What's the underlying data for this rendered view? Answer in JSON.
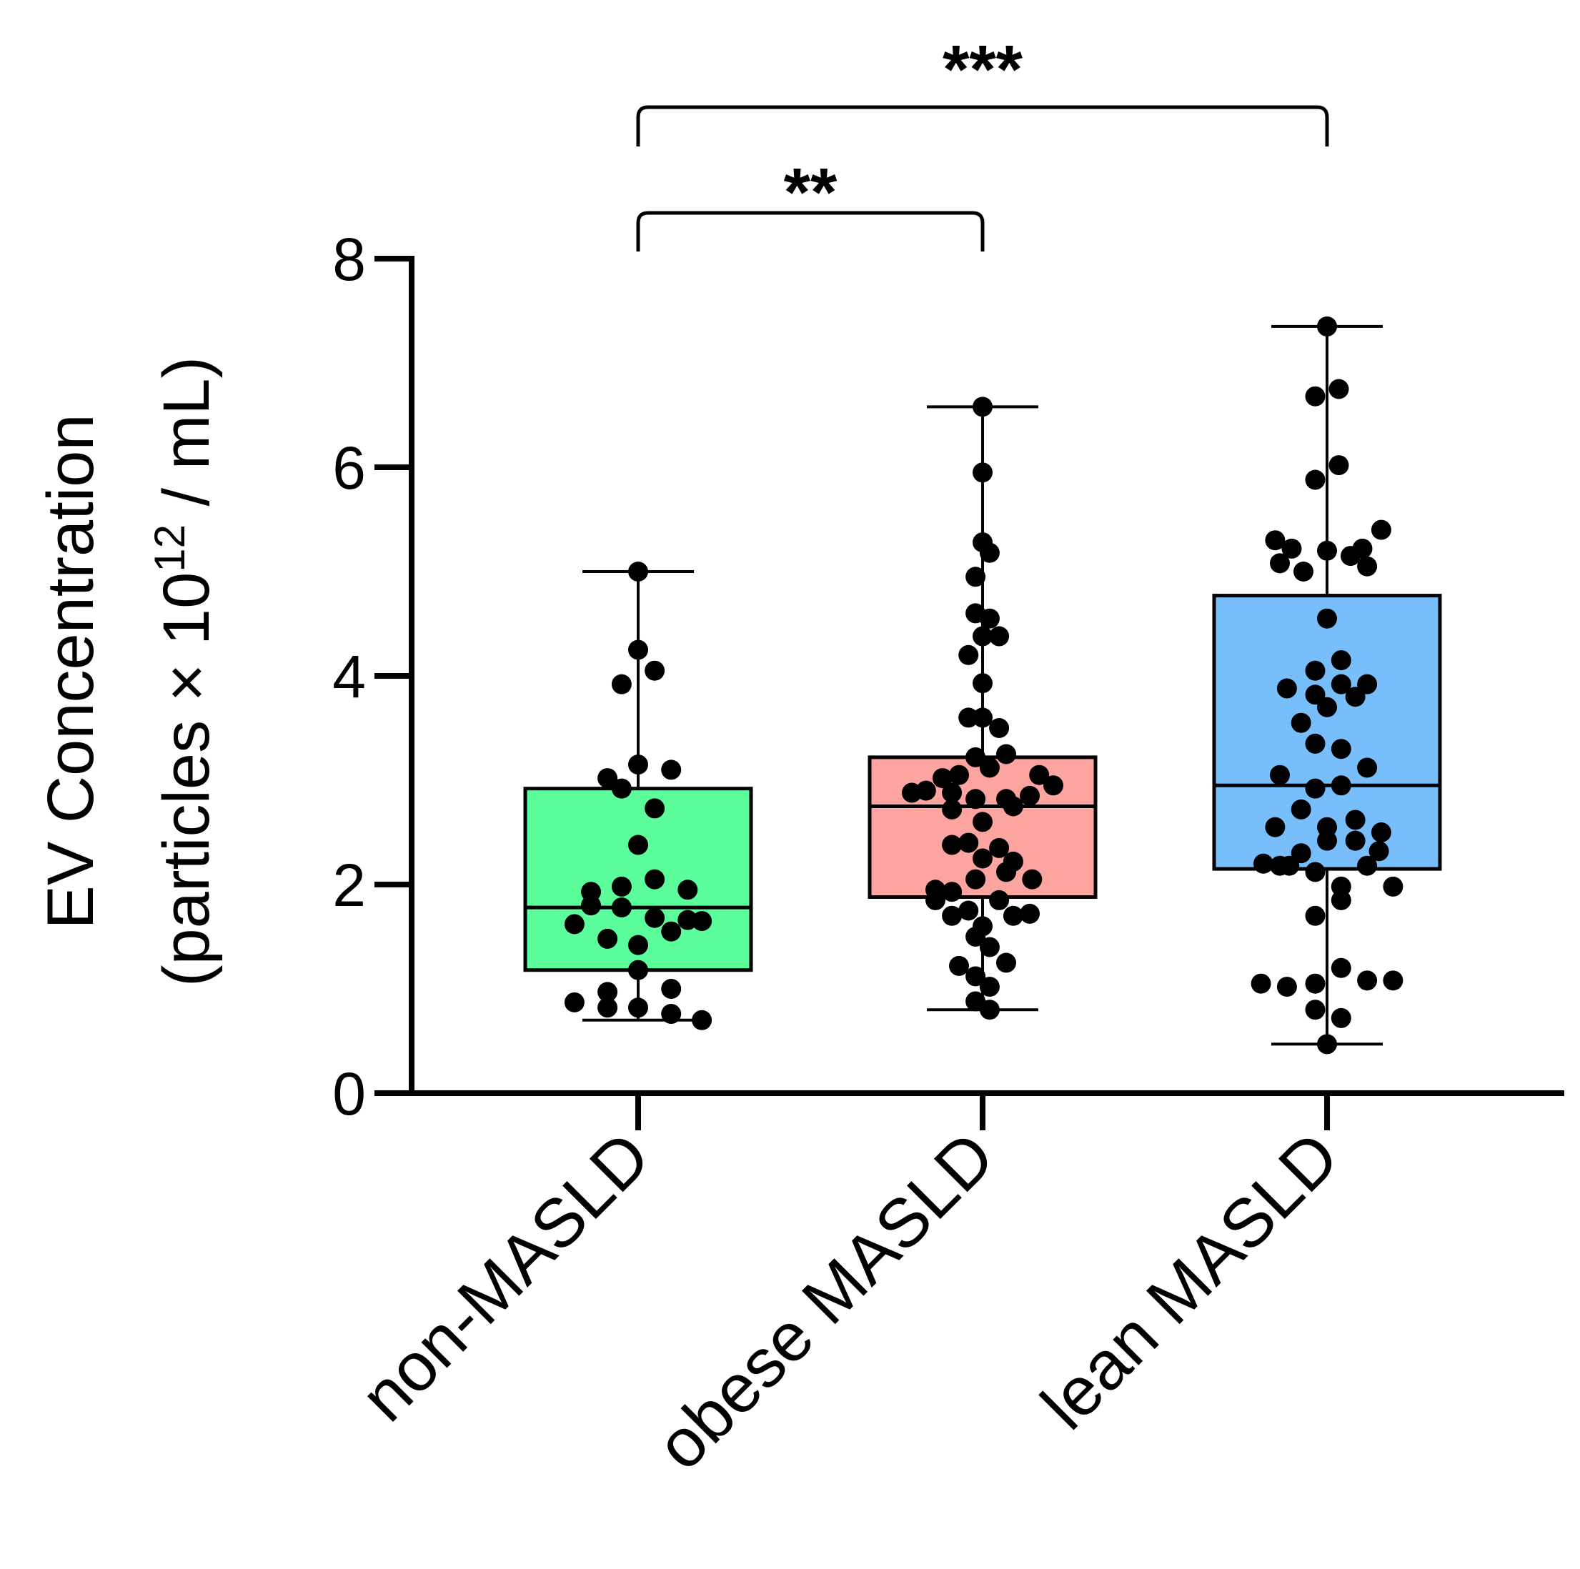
{
  "chart_data": {
    "type": "box",
    "title": "",
    "ylabel_line1": "EV Concentration",
    "ylabel_line2_prefix": "(particles × 10",
    "ylabel_line2_exp": "12",
    "ylabel_line2_suffix": " / mL)",
    "ylim": [
      0,
      8
    ],
    "yticks": [
      0,
      2,
      4,
      6,
      8
    ],
    "categories": [
      "non-MASLD",
      "obese MASLD",
      "lean MASLD"
    ],
    "box_colors": [
      "#5cfe9c",
      "#fca4a0",
      "#78befa"
    ],
    "boxes": [
      {
        "name": "non-MASLD",
        "min": 0.7,
        "q1": 1.18,
        "median": 1.78,
        "q3": 2.92,
        "max": 5.0
      },
      {
        "name": "obese MASLD",
        "min": 0.8,
        "q1": 1.88,
        "median": 2.75,
        "q3": 3.22,
        "max": 6.58
      },
      {
        "name": "lean MASLD",
        "min": 0.47,
        "q1": 2.15,
        "median": 2.95,
        "q3": 4.77,
        "max": 7.35
      }
    ],
    "points": [
      [
        {
          "dx": 0.0,
          "y": 5.0
        },
        {
          "dx": 0.0,
          "y": 4.25
        },
        {
          "dx": 0.07,
          "y": 4.05
        },
        {
          "dx": -0.07,
          "y": 3.92
        },
        {
          "dx": 0.0,
          "y": 3.15
        },
        {
          "dx": 0.14,
          "y": 3.1
        },
        {
          "dx": -0.13,
          "y": 3.02
        },
        {
          "dx": -0.07,
          "y": 2.92
        },
        {
          "dx": 0.07,
          "y": 2.73
        },
        {
          "dx": 0.0,
          "y": 2.38
        },
        {
          "dx": 0.07,
          "y": 2.05
        },
        {
          "dx": -0.07,
          "y": 1.98
        },
        {
          "dx": 0.21,
          "y": 1.95
        },
        {
          "dx": -0.2,
          "y": 1.93
        },
        {
          "dx": -0.2,
          "y": 1.8
        },
        {
          "dx": -0.07,
          "y": 1.78
        },
        {
          "dx": 0.07,
          "y": 1.68
        },
        {
          "dx": 0.21,
          "y": 1.66
        },
        {
          "dx": 0.27,
          "y": 1.65
        },
        {
          "dx": -0.27,
          "y": 1.62
        },
        {
          "dx": 0.14,
          "y": 1.55
        },
        {
          "dx": -0.13,
          "y": 1.48
        },
        {
          "dx": 0.0,
          "y": 1.42
        },
        {
          "dx": 0.0,
          "y": 1.18
        },
        {
          "dx": 0.14,
          "y": 1.0
        },
        {
          "dx": -0.13,
          "y": 0.97
        },
        {
          "dx": -0.27,
          "y": 0.87
        },
        {
          "dx": -0.13,
          "y": 0.82
        },
        {
          "dx": 0.0,
          "y": 0.82
        },
        {
          "dx": 0.14,
          "y": 0.76
        },
        {
          "dx": 0.27,
          "y": 0.7
        }
      ],
      [
        {
          "dx": 0.0,
          "y": 6.58
        },
        {
          "dx": 0.0,
          "y": 5.95
        },
        {
          "dx": 0.0,
          "y": 5.28
        },
        {
          "dx": 0.03,
          "y": 5.18
        },
        {
          "dx": -0.03,
          "y": 4.95
        },
        {
          "dx": -0.03,
          "y": 4.6
        },
        {
          "dx": 0.03,
          "y": 4.55
        },
        {
          "dx": 0.0,
          "y": 4.38
        },
        {
          "dx": 0.07,
          "y": 4.38
        },
        {
          "dx": -0.06,
          "y": 4.2
        },
        {
          "dx": 0.0,
          "y": 3.93
        },
        {
          "dx": -0.06,
          "y": 3.6
        },
        {
          "dx": 0.0,
          "y": 3.6
        },
        {
          "dx": 0.07,
          "y": 3.5
        },
        {
          "dx": -0.03,
          "y": 3.22
        },
        {
          "dx": 0.1,
          "y": 3.25
        },
        {
          "dx": -0.17,
          "y": 3.02
        },
        {
          "dx": -0.1,
          "y": 3.05
        },
        {
          "dx": 0.03,
          "y": 3.12
        },
        {
          "dx": 0.24,
          "y": 3.05
        },
        {
          "dx": -0.24,
          "y": 2.9
        },
        {
          "dx": -0.13,
          "y": 2.88
        },
        {
          "dx": 0.3,
          "y": 2.95
        },
        {
          "dx": 0.2,
          "y": 2.85
        },
        {
          "dx": -0.3,
          "y": 2.88
        },
        {
          "dx": -0.03,
          "y": 2.82
        },
        {
          "dx": 0.1,
          "y": 2.82
        },
        {
          "dx": -0.13,
          "y": 2.72
        },
        {
          "dx": 0.13,
          "y": 2.75
        },
        {
          "dx": 0.0,
          "y": 2.6
        },
        {
          "dx": -0.06,
          "y": 2.4
        },
        {
          "dx": 0.07,
          "y": 2.35
        },
        {
          "dx": -0.13,
          "y": 2.38
        },
        {
          "dx": 0.0,
          "y": 2.25
        },
        {
          "dx": 0.13,
          "y": 2.22
        },
        {
          "dx": 0.1,
          "y": 2.12
        },
        {
          "dx": -0.03,
          "y": 2.05
        },
        {
          "dx": 0.21,
          "y": 2.05
        },
        {
          "dx": -0.2,
          "y": 1.95
        },
        {
          "dx": -0.13,
          "y": 1.93
        },
        {
          "dx": 0.07,
          "y": 1.85
        },
        {
          "dx": -0.2,
          "y": 1.85
        },
        {
          "dx": -0.06,
          "y": 1.75
        },
        {
          "dx": 0.13,
          "y": 1.7
        },
        {
          "dx": 0.2,
          "y": 1.72
        },
        {
          "dx": -0.13,
          "y": 1.7
        },
        {
          "dx": 0.0,
          "y": 1.6
        },
        {
          "dx": -0.03,
          "y": 1.5
        },
        {
          "dx": 0.03,
          "y": 1.4
        },
        {
          "dx": -0.1,
          "y": 1.22
        },
        {
          "dx": 0.1,
          "y": 1.25
        },
        {
          "dx": -0.03,
          "y": 1.12
        },
        {
          "dx": 0.03,
          "y": 1.02
        },
        {
          "dx": -0.03,
          "y": 0.88
        },
        {
          "dx": 0.03,
          "y": 0.8
        }
      ],
      [
        {
          "dx": 0.0,
          "y": 7.35
        },
        {
          "dx": -0.05,
          "y": 6.68
        },
        {
          "dx": 0.05,
          "y": 6.75
        },
        {
          "dx": 0.05,
          "y": 6.02
        },
        {
          "dx": -0.05,
          "y": 5.88
        },
        {
          "dx": 0.23,
          "y": 5.4
        },
        {
          "dx": -0.22,
          "y": 5.3
        },
        {
          "dx": -0.15,
          "y": 5.22
        },
        {
          "dx": 0.0,
          "y": 5.2
        },
        {
          "dx": 0.1,
          "y": 5.15
        },
        {
          "dx": 0.15,
          "y": 5.22
        },
        {
          "dx": -0.2,
          "y": 5.08
        },
        {
          "dx": 0.17,
          "y": 5.05
        },
        {
          "dx": -0.1,
          "y": 5.0
        },
        {
          "dx": 0.0,
          "y": 4.55
        },
        {
          "dx": 0.06,
          "y": 4.15
        },
        {
          "dx": -0.05,
          "y": 4.05
        },
        {
          "dx": 0.06,
          "y": 3.92
        },
        {
          "dx": 0.17,
          "y": 3.92
        },
        {
          "dx": -0.17,
          "y": 3.88
        },
        {
          "dx": -0.05,
          "y": 3.82
        },
        {
          "dx": 0.12,
          "y": 3.8
        },
        {
          "dx": 0.0,
          "y": 3.7
        },
        {
          "dx": -0.11,
          "y": 3.55
        },
        {
          "dx": -0.05,
          "y": 3.35
        },
        {
          "dx": 0.06,
          "y": 3.3
        },
        {
          "dx": 0.17,
          "y": 3.12
        },
        {
          "dx": -0.2,
          "y": 3.05
        },
        {
          "dx": -0.05,
          "y": 2.92
        },
        {
          "dx": 0.06,
          "y": 2.95
        },
        {
          "dx": -0.11,
          "y": 2.72
        },
        {
          "dx": 0.12,
          "y": 2.62
        },
        {
          "dx": -0.22,
          "y": 2.55
        },
        {
          "dx": 0.0,
          "y": 2.55
        },
        {
          "dx": 0.23,
          "y": 2.5
        },
        {
          "dx": 0.0,
          "y": 2.42
        },
        {
          "dx": 0.12,
          "y": 2.42
        },
        {
          "dx": 0.22,
          "y": 2.32
        },
        {
          "dx": -0.11,
          "y": 2.3
        },
        {
          "dx": -0.27,
          "y": 2.2
        },
        {
          "dx": -0.2,
          "y": 2.18
        },
        {
          "dx": -0.16,
          "y": 2.18
        },
        {
          "dx": 0.17,
          "y": 2.18
        },
        {
          "dx": -0.05,
          "y": 2.12
        },
        {
          "dx": 0.06,
          "y": 1.98
        },
        {
          "dx": 0.28,
          "y": 1.98
        },
        {
          "dx": 0.06,
          "y": 1.85
        },
        {
          "dx": -0.05,
          "y": 1.7
        },
        {
          "dx": 0.06,
          "y": 1.2
        },
        {
          "dx": 0.17,
          "y": 1.08
        },
        {
          "dx": 0.28,
          "y": 1.08
        },
        {
          "dx": -0.28,
          "y": 1.05
        },
        {
          "dx": -0.17,
          "y": 1.02
        },
        {
          "dx": -0.05,
          "y": 1.05
        },
        {
          "dx": -0.05,
          "y": 0.8
        },
        {
          "dx": 0.06,
          "y": 0.72
        },
        {
          "dx": 0.0,
          "y": 0.47
        }
      ]
    ],
    "significance": [
      {
        "from": 0,
        "to": 2,
        "label": "***",
        "level": "upper"
      },
      {
        "from": 0,
        "to": 1,
        "label": "**",
        "level": "lower"
      }
    ]
  }
}
